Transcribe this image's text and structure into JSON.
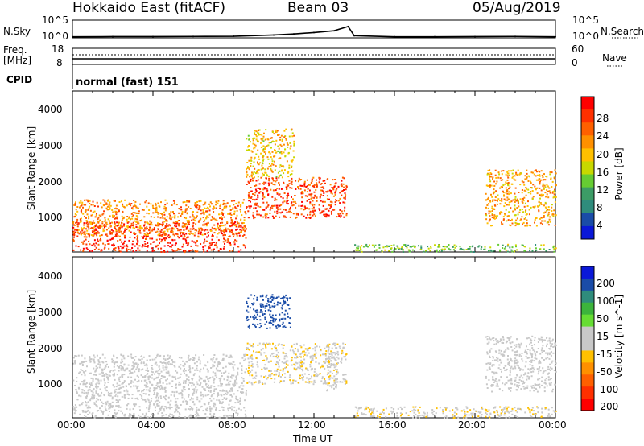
{
  "header": {
    "station": "Hokkaido East (fitACF)",
    "beam": "Beam 03",
    "date": "05/Aug/2019"
  },
  "noise_panel": {
    "left_label": "N.Sky",
    "right_label": "N.Search",
    "ticks_left": [
      "10^5",
      "10^0"
    ],
    "ticks_right": [
      "10^5",
      "10^0"
    ]
  },
  "freq_panel": {
    "left_label_1": "Freq.",
    "left_label_2": "[MHz]",
    "right_label": "Nave",
    "ticks_left": [
      "18",
      "8"
    ],
    "ticks_right": [
      "60",
      "0"
    ]
  },
  "cpid": {
    "label": "CPID",
    "value": "normal (fast) 151"
  },
  "axes": {
    "ylabel": "Slant Range [km]",
    "yticks": [
      "4000",
      "3000",
      "2000",
      "1000"
    ],
    "xticks": [
      "00:00",
      "04:00",
      "08:00",
      "12:00",
      "16:00",
      "20:00",
      "00:00"
    ],
    "xlabel": "Time UT"
  },
  "power_scale": {
    "label": "Power [dB]",
    "ticks": [
      "28",
      "24",
      "20",
      "16",
      "12",
      "8",
      "4"
    ],
    "colors": [
      "#ff0000",
      "#ff3000",
      "#ff6000",
      "#ff9000",
      "#ffc000",
      "#c8d800",
      "#66cc33",
      "#3c9c66",
      "#2f8c7c",
      "#1a4ca8",
      "#0a18d8"
    ]
  },
  "velocity_scale": {
    "label": "Velocity [m s^-1]",
    "ticks": [
      "200",
      "100",
      "50",
      "15",
      "-15",
      "-50",
      "-100",
      "-200"
    ],
    "colors": [
      "#0a18d8",
      "#1a4ca8",
      "#2f8c7c",
      "#3cb43c",
      "#66dd33",
      "#c8c8c8",
      "#c8c8c8",
      "#ffc000",
      "#ff9000",
      "#ff6000",
      "#ff3000",
      "#ff0000"
    ]
  },
  "chart_data": [
    {
      "type": "line",
      "name": "noise",
      "x_hours": [
        0,
        2,
        4,
        6,
        8,
        10,
        11,
        12,
        13,
        13.7,
        14,
        16,
        18,
        20,
        22,
        24
      ],
      "y_log10": [
        0.3,
        0.35,
        0.35,
        0.4,
        0.45,
        0.8,
        1.1,
        1.5,
        2.0,
        3.2,
        0.6,
        0.3,
        0.3,
        0.35,
        0.4,
        0.3
      ],
      "ylim": [
        0,
        5
      ]
    },
    {
      "type": "heatmap",
      "name": "power",
      "xlim": [
        0,
        24
      ],
      "ylim": [
        180,
        4500
      ],
      "zlim": [
        0,
        30
      ],
      "regions": [
        {
          "x": [
            0,
            8.6
          ],
          "y": [
            200,
            1000
          ],
          "level": 28
        },
        {
          "x": [
            0,
            8.6
          ],
          "y": [
            600,
            1600
          ],
          "level": 22
        },
        {
          "x": [
            8.6,
            13.6
          ],
          "y": [
            1100,
            2200
          ],
          "level": 26
        },
        {
          "x": [
            8.6,
            11
          ],
          "y": [
            2200,
            3500
          ],
          "level": 18
        },
        {
          "x": [
            14,
            24
          ],
          "y": [
            200,
            400
          ],
          "level": 12
        },
        {
          "x": [
            20.5,
            24
          ],
          "y": [
            900,
            2400
          ],
          "level": 20
        }
      ]
    },
    {
      "type": "heatmap",
      "name": "velocity",
      "xlim": [
        0,
        24
      ],
      "ylim": [
        180,
        4500
      ],
      "zlim": [
        -250,
        250
      ],
      "regions": [
        {
          "x": [
            0,
            8.6
          ],
          "y": [
            200,
            1900
          ],
          "level": 0
        },
        {
          "x": [
            8.6,
            13.6
          ],
          "y": [
            1100,
            2200
          ],
          "level": -40
        },
        {
          "x": [
            8.6,
            10.8
          ],
          "y": [
            2600,
            3500
          ],
          "level": 200
        },
        {
          "x": [
            12.6,
            13.2
          ],
          "y": [
            900,
            2000
          ],
          "level": 30
        },
        {
          "x": [
            14,
            24
          ],
          "y": [
            200,
            500
          ],
          "level": -40
        },
        {
          "x": [
            20.5,
            24
          ],
          "y": [
            900,
            2400
          ],
          "level": 0
        }
      ]
    }
  ]
}
